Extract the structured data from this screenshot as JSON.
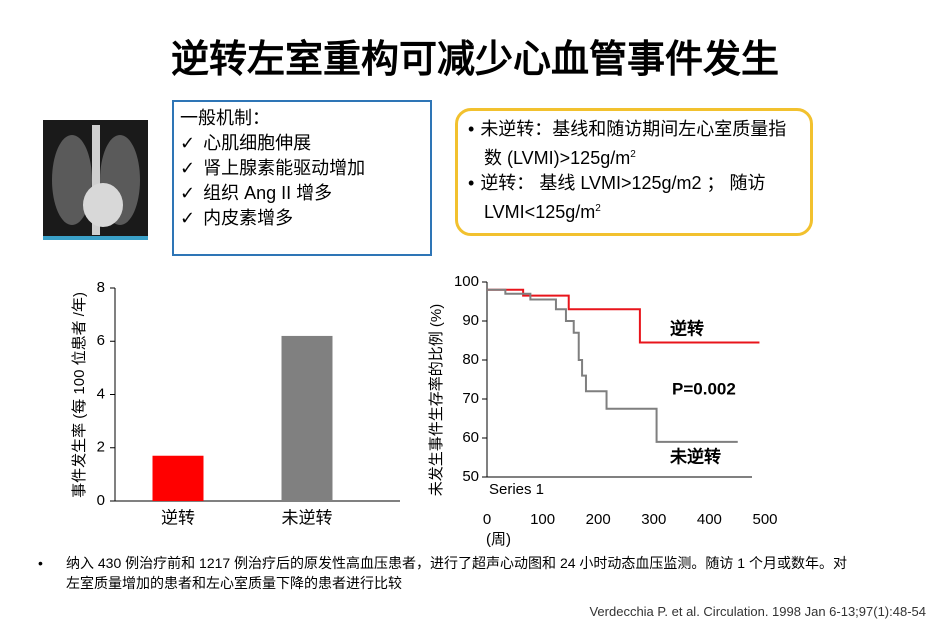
{
  "title": "逆转左室重构可减少心血管事件发生",
  "mechanism_box": {
    "heading": "一般机制：",
    "items": [
      "心肌细胞伸展",
      "肾上腺素能驱动增加",
      "组织 Ang II 增多",
      "内皮素增多"
    ]
  },
  "definition_box": {
    "items": [
      {
        "text": "未逆转：基线和随访期间左心室质量指数 (LVMI)>125g/m",
        "sup": "2"
      },
      {
        "text": "逆转： 基线 LVMI>125g/m2 ； 随访 LVMI<125g/m",
        "sup": "2"
      }
    ]
  },
  "note": "纳入 430 例治疗前和 1217 例治疗后的原发性高血压患者，进行了超声心动图和 24 小时动态血压监测。随访 1 个月或数年。对左室质量增加的患者和左心室质量下降的患者进行比较",
  "citation": "Verdecchia P. et al. Circulation. 1998 Jan 6-13;97(1):48-54",
  "chart_data": [
    {
      "type": "bar",
      "y_label": "事件发生率 (每 100 位患者 /年)",
      "categories": [
        "逆转",
        "未逆转"
      ],
      "values": [
        1.7,
        6.2
      ],
      "colors": [
        "#ff0000",
        "#808080"
      ],
      "ylim": [
        0,
        8
      ],
      "yticks": [
        0,
        2,
        4,
        6,
        8
      ]
    },
    {
      "type": "line",
      "y_label": "未发生事件生存率的比例 (%)",
      "x_label": "(周)",
      "legend_label": "Series 1",
      "xlim": [
        0,
        500
      ],
      "xticks": [
        0,
        100,
        200,
        300,
        400,
        500
      ],
      "ylim": [
        50,
        100
      ],
      "yticks": [
        50,
        60,
        70,
        80,
        90,
        100
      ],
      "series": [
        {
          "name": "逆转",
          "color": "#e8141b",
          "x": [
            0,
            65,
            65,
            147,
            147,
            275,
            275,
            490
          ],
          "values": [
            98,
            98,
            96.5,
            96.5,
            93,
            93,
            84.5,
            84.5
          ]
        },
        {
          "name": "未逆转",
          "color": "#7f7f7f",
          "x": [
            0,
            33,
            33,
            78,
            78,
            124,
            124,
            142,
            142,
            156,
            156,
            165,
            165,
            171,
            171,
            178,
            178,
            215,
            215,
            305,
            305,
            451
          ],
          "values": [
            98,
            98,
            97,
            97,
            95.5,
            95.5,
            93,
            93,
            90,
            90,
            87,
            87,
            80,
            80,
            76,
            76,
            72,
            72,
            67.5,
            67.5,
            59,
            59
          ]
        }
      ],
      "annotations": [
        "P=0.002"
      ]
    }
  ]
}
